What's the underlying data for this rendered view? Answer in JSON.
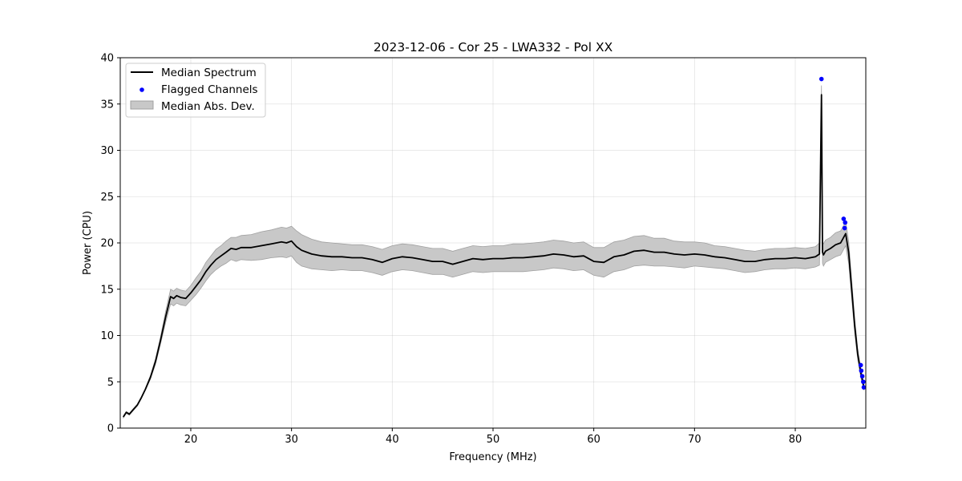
{
  "chart_data": {
    "type": "line",
    "title": "2023-12-06 - Cor 25 - LWA332 - Pol XX",
    "xlabel": "Frequency (MHz)",
    "ylabel": "Power (CPU)",
    "xlim": [
      13,
      87
    ],
    "ylim": [
      0,
      40
    ],
    "xticks": [
      20,
      30,
      40,
      50,
      60,
      70,
      80
    ],
    "yticks": [
      0,
      5,
      10,
      15,
      20,
      25,
      30,
      35,
      40
    ],
    "xtick_labels": [
      "20",
      "30",
      "40",
      "50",
      "60",
      "70",
      "80"
    ],
    "ytick_labels": [
      "0",
      "5",
      "10",
      "15",
      "20",
      "25",
      "30",
      "35",
      "40"
    ],
    "grid": true,
    "legend_position": "top-left",
    "legend": [
      "Median Spectrum",
      "Flagged Channels",
      "Median Abs. Dev."
    ],
    "colors": {
      "median": "#000000",
      "flagged": "#0000ff",
      "mad_fill": "#c8c8c8",
      "mad_edge": "#a0a0a0"
    },
    "series": [
      {
        "name": "Median Spectrum",
        "x": [
          13.3,
          13.6,
          13.9,
          14.3,
          14.7,
          15.1,
          15.5,
          16.0,
          16.5,
          17.0,
          17.5,
          18.0,
          18.3,
          18.6,
          19.0,
          19.5,
          20.0,
          20.5,
          21.0,
          21.5,
          22.0,
          22.5,
          23.0,
          23.5,
          24.0,
          24.5,
          25.0,
          26.0,
          27.0,
          28.0,
          29.0,
          29.5,
          30.0,
          30.5,
          31.0,
          32.0,
          33.0,
          34.0,
          35.0,
          36.0,
          37.0,
          38.0,
          39.0,
          40.0,
          41.0,
          42.0,
          43.0,
          44.0,
          45.0,
          46.0,
          47.0,
          48.0,
          49.0,
          50.0,
          51.0,
          52.0,
          53.0,
          54.0,
          55.0,
          56.0,
          57.0,
          58.0,
          59.0,
          60.0,
          61.0,
          62.0,
          63.0,
          64.0,
          65.0,
          66.0,
          67.0,
          68.0,
          69.0,
          70.0,
          71.0,
          72.0,
          73.0,
          74.0,
          75.0,
          76.0,
          77.0,
          78.0,
          79.0,
          80.0,
          81.0,
          82.0,
          82.4,
          82.6,
          82.7,
          82.8,
          83.0,
          83.5,
          84.0,
          84.5,
          84.8,
          85.0,
          85.3,
          85.6,
          85.9,
          86.2,
          86.5,
          86.8
        ],
        "y": [
          1.2,
          1.7,
          1.5,
          2.0,
          2.5,
          3.3,
          4.2,
          5.5,
          7.2,
          9.5,
          12.0,
          14.2,
          14.0,
          14.3,
          14.1,
          14.0,
          14.6,
          15.3,
          16.0,
          16.9,
          17.6,
          18.2,
          18.6,
          19.0,
          19.4,
          19.3,
          19.5,
          19.5,
          19.7,
          19.9,
          20.1,
          20.0,
          20.2,
          19.6,
          19.2,
          18.8,
          18.6,
          18.5,
          18.5,
          18.4,
          18.4,
          18.2,
          17.9,
          18.3,
          18.5,
          18.4,
          18.2,
          18.0,
          18.0,
          17.7,
          18.0,
          18.3,
          18.2,
          18.3,
          18.3,
          18.4,
          18.4,
          18.5,
          18.6,
          18.8,
          18.7,
          18.5,
          18.6,
          18.0,
          17.9,
          18.5,
          18.7,
          19.1,
          19.2,
          19.0,
          19.0,
          18.8,
          18.7,
          18.8,
          18.7,
          18.5,
          18.4,
          18.2,
          18.0,
          18.0,
          18.2,
          18.3,
          18.3,
          18.4,
          18.3,
          18.5,
          18.8,
          36.0,
          19.0,
          18.7,
          19.1,
          19.4,
          19.8,
          20.0,
          20.6,
          21.0,
          19.0,
          15.0,
          11.0,
          8.0,
          6.0,
          4.5
        ],
        "mad_half_width": [
          0.1,
          0.1,
          0.1,
          0.1,
          0.1,
          0.1,
          0.1,
          0.2,
          0.3,
          0.4,
          0.6,
          0.8,
          0.8,
          0.8,
          0.8,
          0.8,
          0.8,
          0.9,
          0.9,
          1.0,
          1.0,
          1.1,
          1.1,
          1.2,
          1.2,
          1.3,
          1.3,
          1.4,
          1.5,
          1.5,
          1.6,
          1.6,
          1.6,
          1.7,
          1.7,
          1.6,
          1.5,
          1.5,
          1.4,
          1.4,
          1.4,
          1.4,
          1.4,
          1.4,
          1.4,
          1.4,
          1.4,
          1.4,
          1.4,
          1.4,
          1.4,
          1.4,
          1.4,
          1.4,
          1.4,
          1.5,
          1.5,
          1.5,
          1.5,
          1.5,
          1.5,
          1.5,
          1.5,
          1.5,
          1.6,
          1.6,
          1.6,
          1.6,
          1.6,
          1.5,
          1.5,
          1.4,
          1.4,
          1.3,
          1.3,
          1.2,
          1.2,
          1.2,
          1.2,
          1.1,
          1.1,
          1.1,
          1.1,
          1.1,
          1.1,
          1.1,
          1.2,
          1.0,
          1.2,
          1.2,
          1.2,
          1.2,
          1.3,
          1.3,
          1.3,
          1.3,
          1.2,
          1.0,
          0.8,
          0.6,
          0.5,
          0.4
        ]
      },
      {
        "name": "Flagged Channels",
        "x": [
          82.6,
          84.8,
          84.95,
          84.9,
          86.5,
          86.55,
          86.65,
          86.75,
          86.8
        ],
        "y": [
          37.7,
          22.6,
          22.2,
          21.6,
          6.8,
          6.2,
          5.6,
          5.0,
          4.4
        ]
      }
    ]
  }
}
